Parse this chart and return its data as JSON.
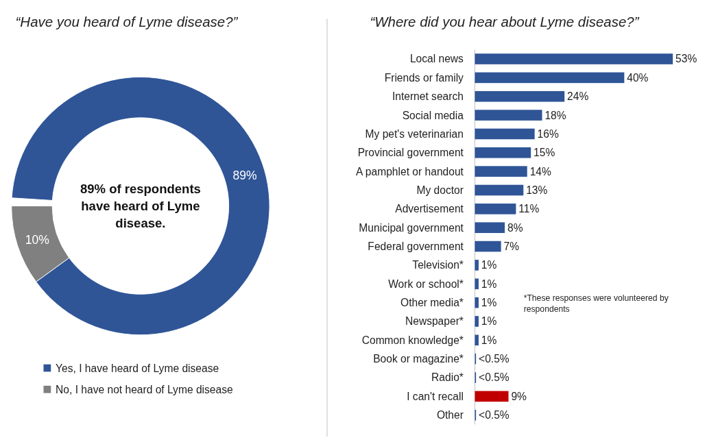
{
  "chart_data": [
    {
      "type": "donut",
      "title": "“Have you heard of Lyme disease?”",
      "categories": [
        "Yes, I have heard of Lyme disease",
        "No, I have not heard of Lyme disease"
      ],
      "values": [
        89,
        10
      ],
      "colors": [
        "#2f5597",
        "#808080"
      ],
      "value_labels": [
        "89%",
        "10%"
      ],
      "legend": "bottom",
      "annotations": [
        "89% of respondents have heard of Lyme disease."
      ]
    },
    {
      "type": "bar",
      "orientation": "horizontal",
      "title": "“Where did you hear about Lyme disease?”",
      "categories": [
        "Local news",
        "Friends or family",
        "Internet search",
        "Social media",
        "My pet's veterinarian",
        "Provincial government",
        "A pamphlet or handout",
        "My doctor",
        "Advertisement",
        "Municipal government",
        "Federal government",
        "Television*",
        "Work or school*",
        "Other media*",
        "Newspaper*",
        "Common knowledge*",
        "Book or magazine*",
        "Radio*",
        "I can't recall",
        "Other"
      ],
      "values": [
        53,
        40,
        24,
        18,
        16,
        15,
        14,
        13,
        11,
        8,
        7,
        1,
        1,
        1,
        1,
        1,
        0.3,
        0.3,
        9,
        0.3
      ],
      "colors": [
        "#2f5597",
        "#2f5597",
        "#2f5597",
        "#2f5597",
        "#2f5597",
        "#2f5597",
        "#2f5597",
        "#2f5597",
        "#2f5597",
        "#2f5597",
        "#2f5597",
        "#2f5597",
        "#2f5597",
        "#2f5597",
        "#2f5597",
        "#2f5597",
        "#2f5597",
        "#2f5597",
        "#c00000",
        "#2f5597"
      ],
      "value_labels": [
        "53%",
        "40%",
        "24%",
        "18%",
        "16%",
        "15%",
        "14%",
        "13%",
        "11%",
        "8%",
        "7%",
        "1%",
        "1%",
        "1%",
        "1%",
        "1%",
        "<0.5%",
        "<0.5%",
        "9%",
        "<0.5%"
      ],
      "annotations": [
        "*These responses were volunteered by respondents"
      ]
    }
  ]
}
